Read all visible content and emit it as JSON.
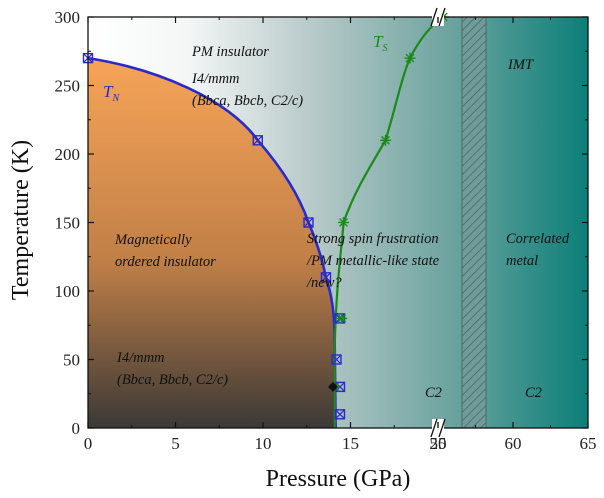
{
  "chart_data": {
    "type": "line",
    "xlabel": "Pressure (GPa)",
    "ylabel": "Temperature (K)",
    "ylim": [
      0,
      300
    ],
    "x_axis_break": {
      "left_segment": [
        0,
        20
      ],
      "right_segment": [
        55,
        65
      ]
    },
    "x_ticks": [
      "0",
      "5",
      "10",
      "15",
      "20",
      "55",
      "60",
      "65"
    ],
    "y_ticks": [
      "0",
      "50",
      "100",
      "150",
      "200",
      "250",
      "300"
    ],
    "series": [
      {
        "name": "T_N",
        "color": "#2a2acc",
        "marker": "crossed-square",
        "points": [
          [
            0,
            270
          ],
          [
            9.7,
            210
          ],
          [
            12.6,
            150
          ],
          [
            13.6,
            110
          ],
          [
            14.4,
            80
          ],
          [
            14.2,
            50
          ],
          [
            14.4,
            30
          ],
          [
            14.4,
            10
          ]
        ]
      },
      {
        "name": "T_S",
        "color": "#1a8a1a",
        "marker": "asterisk",
        "points": [
          [
            14.1,
            30
          ],
          [
            14.5,
            80
          ],
          [
            14.6,
            150
          ],
          [
            17.0,
            210
          ],
          [
            18.4,
            270
          ],
          [
            20.3,
            300
          ]
        ]
      }
    ],
    "extra_markers": [
      {
        "x": 14.0,
        "y": 30,
        "shape": "diamond",
        "color": "#111111"
      }
    ],
    "hatched_band_x": [
      56.6,
      58.2
    ],
    "series_labels": {
      "tn": {
        "text": "T",
        "sub": "N"
      },
      "ts": {
        "text": "T",
        "sub": "S"
      }
    },
    "annotations": {
      "pm_insulator": "PM insulator",
      "i4mmm_top": "I4/mmm",
      "phases_top": "(Bbca, Bbcb, C2/c)",
      "mag_line1": "Magnetically",
      "mag_line2": "ordered insulator",
      "i4mmm_bottom": "I4/mmm",
      "phases_bottom": "(Bbca, Bbcb, C2/c)",
      "strong_line1": "Strong spin frustration",
      "strong_line2": "/PM metallic-like state",
      "strong_line3": "/new?",
      "correlated_line1": "Correlated",
      "correlated_line2": "metal",
      "imt": "IMT",
      "c2_left": "C2",
      "c2_right": "C2"
    },
    "colors": {
      "ordered_region_top": "#f7a458",
      "ordered_region_bottom": "#3b3937",
      "background_left": "#ffffff",
      "background_right": "#0b7f78",
      "imt_text": "#8b1a1a"
    }
  }
}
